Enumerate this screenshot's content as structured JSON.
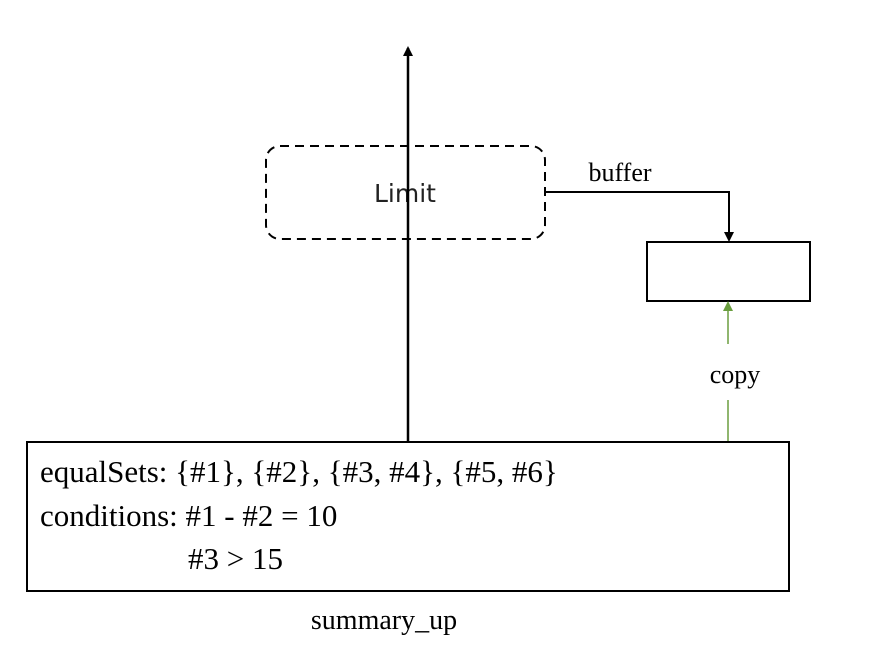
{
  "diagram": {
    "limit_node": {
      "label": "Limit"
    },
    "buffer_edge": {
      "label": "buffer"
    },
    "copy_edge": {
      "label": "copy",
      "color": "#6a9e3f"
    },
    "summary_box": {
      "lines": [
        "equalSets: {#1}, {#2}, {#3, #4}, {#5, #6}",
        "conditions: #1 - #2 = 10",
        "#3 > 15"
      ],
      "caption": "summary_up"
    }
  }
}
